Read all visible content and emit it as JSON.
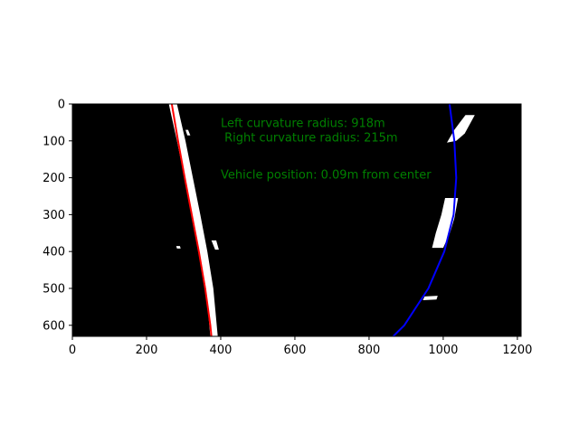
{
  "chart_data": {
    "type": "image",
    "title": "",
    "xlabel": "",
    "ylabel": "",
    "xlim": [
      0,
      1210
    ],
    "ylim": [
      630,
      0
    ],
    "x_ticks": [
      0,
      200,
      400,
      600,
      800,
      1000,
      1200
    ],
    "y_ticks": [
      0,
      100,
      200,
      300,
      400,
      500,
      600
    ],
    "grid": false,
    "background_color": "#000000",
    "annotations": [
      {
        "text": "Left curvature radius: 918m",
        "x": 400,
        "y": 50,
        "color": "#008000"
      },
      {
        "text": " Right curvature radius: 215m",
        "x": 400,
        "y": 90,
        "color": "#008000"
      },
      {
        "text": "Vehicle position: 0.09m from center",
        "x": 400,
        "y": 190,
        "color": "#008000"
      }
    ],
    "series": [
      {
        "color": "#ff0000",
        "points": [
          [
            268,
            0
          ],
          [
            285,
            100
          ],
          [
            303,
            200
          ],
          [
            322,
            300
          ],
          [
            341,
            400
          ],
          [
            358,
            500
          ],
          [
            372,
            600
          ],
          [
            375,
            630
          ]
        ]
      },
      {
        "color": "#0000ff",
        "points": [
          [
            1017,
            0
          ],
          [
            1030,
            100
          ],
          [
            1035,
            200
          ],
          [
            1028,
            300
          ],
          [
            1003,
            400
          ],
          [
            960,
            500
          ],
          [
            895,
            600
          ],
          [
            865,
            630
          ]
        ]
      }
    ],
    "lane_pixels": [
      {
        "color": "#ffffff",
        "polygon": [
          [
            260,
            0
          ],
          [
            282,
            0
          ],
          [
            305,
            100
          ],
          [
            325,
            200
          ],
          [
            345,
            300
          ],
          [
            364,
            400
          ],
          [
            380,
            500
          ],
          [
            392,
            630
          ],
          [
            372,
            630
          ],
          [
            360,
            500
          ],
          [
            342,
            400
          ],
          [
            322,
            300
          ],
          [
            302,
            200
          ],
          [
            282,
            100
          ]
        ]
      },
      {
        "color": "#ffffff",
        "polygon": [
          [
            1005,
            255
          ],
          [
            1040,
            255
          ],
          [
            1030,
            310
          ],
          [
            1018,
            350
          ],
          [
            1000,
            390
          ],
          [
            970,
            390
          ],
          [
            980,
            350
          ],
          [
            995,
            300
          ]
        ]
      },
      {
        "color": "#ffffff",
        "polygon": [
          [
            1060,
            30
          ],
          [
            1085,
            30
          ],
          [
            1058,
            80
          ],
          [
            1035,
            100
          ],
          [
            1010,
            105
          ],
          [
            1030,
            70
          ]
        ]
      },
      {
        "color": "#ffffff",
        "polygon": [
          [
            950,
            522
          ],
          [
            985,
            520
          ],
          [
            982,
            530
          ],
          [
            945,
            532
          ]
        ]
      },
      {
        "color": "#ffffff",
        "polygon": [
          [
            375,
            370
          ],
          [
            388,
            370
          ],
          [
            395,
            395
          ],
          [
            385,
            395
          ]
        ]
      },
      {
        "color": "#ffffff",
        "polygon": [
          [
            280,
            385
          ],
          [
            290,
            385
          ],
          [
            292,
            392
          ],
          [
            282,
            392
          ]
        ]
      },
      {
        "color": "#ffffff",
        "polygon": [
          [
            305,
            70
          ],
          [
            312,
            70
          ],
          [
            318,
            85
          ],
          [
            310,
            85
          ]
        ]
      }
    ]
  }
}
